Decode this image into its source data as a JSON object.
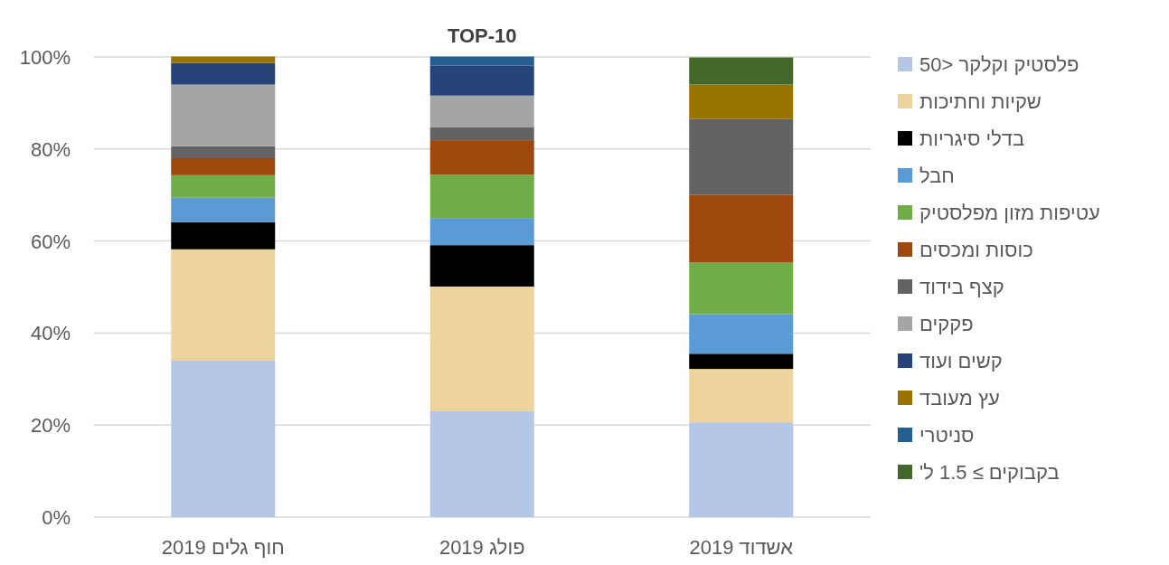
{
  "chart_data": {
    "type": "bar",
    "stacked": true,
    "title": "TOP-10",
    "categories": [
      "חוף גלים 2019",
      "פולג 2019",
      "אשדוד 2019"
    ],
    "series": [
      {
        "name": "פלסטיק וקלקר <50",
        "color": "#b4c7e7",
        "values": [
          34.0,
          23.0,
          20.6
        ]
      },
      {
        "name": "שקיות וחתיכות",
        "color": "#ecd49c",
        "values": [
          24.2,
          27.1,
          11.6
        ]
      },
      {
        "name": "בדלי סיגריות",
        "color": "#000000",
        "values": [
          5.9,
          9.0,
          3.3
        ]
      },
      {
        "name": "חבל",
        "color": "#5b9bd5",
        "values": [
          5.3,
          5.9,
          8.6
        ]
      },
      {
        "name": "עטיפות מזון מפלסטיק",
        "color": "#70ad47",
        "values": [
          4.9,
          9.4,
          11.2
        ]
      },
      {
        "name": "כוסות ומכסים",
        "color": "#9e480e",
        "values": [
          3.7,
          7.5,
          14.7
        ]
      },
      {
        "name": "קצף בידוד",
        "color": "#636363",
        "values": [
          2.6,
          2.8,
          16.5
        ]
      },
      {
        "name": "פקקים",
        "color": "#a5a5a5",
        "values": [
          13.4,
          6.9,
          0
        ]
      },
      {
        "name": "קשים ועוד",
        "color": "#264478",
        "values": [
          4.7,
          6.5,
          0
        ]
      },
      {
        "name": "עץ מעובד",
        "color": "#997300",
        "values": [
          1.4,
          0,
          7.5
        ]
      },
      {
        "name": "סניטרי",
        "color": "#255e91",
        "values": [
          0,
          2.0,
          0
        ]
      },
      {
        "name": "בקבוקים ≥ 1.5 ל'",
        "color": "#43682b",
        "values": [
          0,
          0,
          5.9
        ]
      }
    ],
    "ylim": [
      0,
      100
    ],
    "yticks": [
      {
        "value": 0,
        "label": "0%"
      },
      {
        "value": 20,
        "label": "20%"
      },
      {
        "value": 40,
        "label": "40%"
      },
      {
        "value": 60,
        "label": "60%"
      },
      {
        "value": 80,
        "label": "80%"
      },
      {
        "value": 100,
        "label": "100%"
      }
    ],
    "grid": "y",
    "legend": "right"
  }
}
